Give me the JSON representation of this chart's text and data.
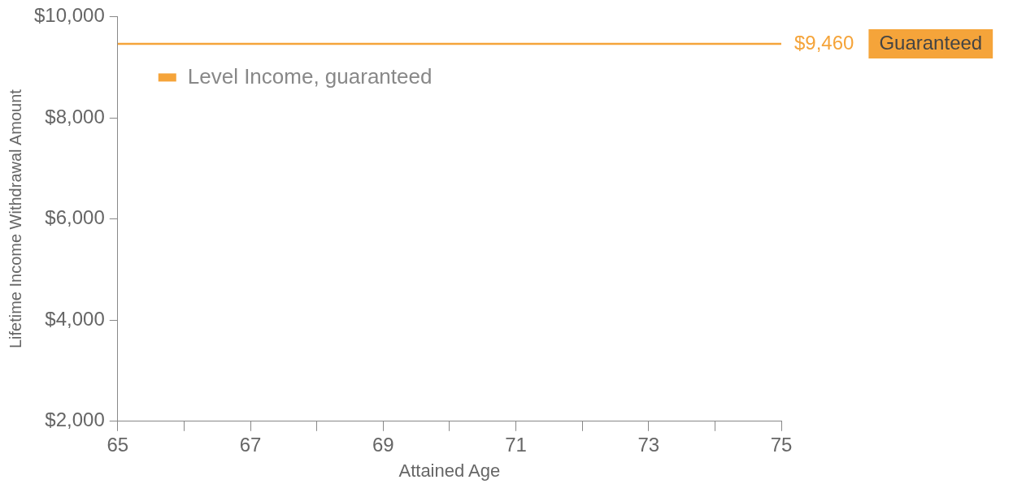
{
  "chart_data": {
    "type": "line",
    "xlabel": "Attained Age",
    "ylabel": "Lifetime Income Withdrawal Amount",
    "x": [
      65,
      75
    ],
    "series": [
      {
        "name": "Level Income, guaranteed",
        "color": "#f5a43a",
        "values": [
          9460,
          9460
        ]
      }
    ],
    "xlim": [
      65,
      75
    ],
    "xticks": [
      65,
      {
        "value": 66,
        "label": null
      },
      67,
      {
        "value": 68,
        "label": null
      },
      69,
      {
        "value": 70,
        "label": null
      },
      71,
      {
        "value": 72,
        "label": null
      },
      73,
      {
        "value": 74,
        "label": null
      },
      75
    ],
    "ylim": [
      2000,
      10000
    ],
    "yticks": [
      {
        "value": 2000,
        "label": "$2,000"
      },
      {
        "value": 4000,
        "label": "$4,000"
      },
      {
        "value": 6000,
        "label": "$6,000"
      },
      {
        "value": 8000,
        "label": "$8,000"
      },
      {
        "value": 10000,
        "label": "$10,000"
      }
    ],
    "annotations": [
      {
        "text": "$9,460",
        "x": 75,
        "y": 9460
      },
      "Guaranteed"
    ],
    "legend": "top left",
    "grid": false,
    "marker": "none",
    "line_style": "solid"
  }
}
